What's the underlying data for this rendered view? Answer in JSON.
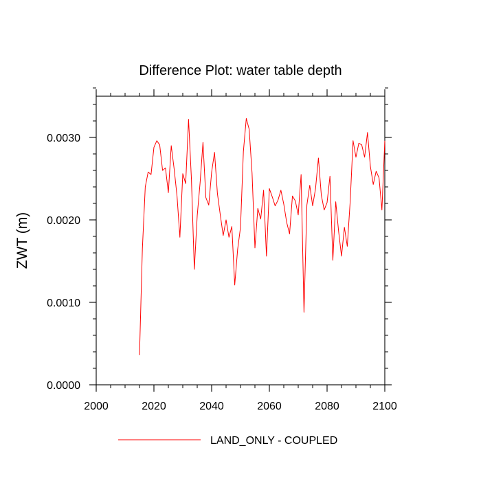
{
  "chart_data": {
    "type": "line",
    "title": "Difference Plot: water table depth",
    "xlabel": "",
    "ylabel": "ZWT  (m)",
    "xlim": [
      2000,
      2100
    ],
    "ylim": [
      0.0,
      0.0035
    ],
    "grid": false,
    "x_major_ticks": [
      2000,
      2020,
      2040,
      2060,
      2080,
      2100
    ],
    "x_tick_labels": [
      "2000",
      "2020",
      "2040",
      "2060",
      "2080",
      "2100"
    ],
    "x_minor_step": 5,
    "y_major_ticks": [
      0.0,
      0.001,
      0.002,
      0.003
    ],
    "y_tick_labels": [
      "0.0000",
      "0.0010",
      "0.0020",
      "0.0030"
    ],
    "y_minor_step": 0.0002,
    "legend_position": "bottom",
    "series": [
      {
        "name": "LAND_ONLY - COUPLED",
        "color": "#ff0000",
        "x": [
          2015,
          2016,
          2017,
          2018,
          2019,
          2020,
          2021,
          2022,
          2023,
          2024,
          2025,
          2026,
          2027,
          2028,
          2029,
          2030,
          2031,
          2032,
          2033,
          2034,
          2035,
          2036,
          2037,
          2038,
          2039,
          2040,
          2041,
          2042,
          2043,
          2044,
          2045,
          2046,
          2047,
          2048,
          2049,
          2050,
          2051,
          2052,
          2053,
          2054,
          2055,
          2056,
          2057,
          2058,
          2059,
          2060,
          2061,
          2062,
          2063,
          2064,
          2065,
          2066,
          2067,
          2068,
          2069,
          2070,
          2071,
          2072,
          2073,
          2074,
          2075,
          2076,
          2077,
          2078,
          2079,
          2080,
          2081,
          2082,
          2083,
          2084,
          2085,
          2086,
          2087,
          2088,
          2089,
          2090,
          2091,
          2092,
          2093,
          2094,
          2095,
          2096,
          2097,
          2098,
          2099,
          2100
        ],
        "values": [
          0.00036,
          0.00165,
          0.0024,
          0.00258,
          0.00255,
          0.00288,
          0.00296,
          0.00291,
          0.0026,
          0.00263,
          0.00233,
          0.0029,
          0.00262,
          0.00229,
          0.00179,
          0.00256,
          0.00244,
          0.00322,
          0.00249,
          0.0014,
          0.00205,
          0.00245,
          0.00294,
          0.00227,
          0.00218,
          0.00258,
          0.00282,
          0.00232,
          0.00206,
          0.00181,
          0.002,
          0.00179,
          0.00192,
          0.00121,
          0.00164,
          0.00191,
          0.00283,
          0.00323,
          0.0031,
          0.00257,
          0.00166,
          0.00214,
          0.00201,
          0.00236,
          0.00156,
          0.00238,
          0.00228,
          0.00217,
          0.00224,
          0.00236,
          0.00219,
          0.00197,
          0.00183,
          0.00229,
          0.00223,
          0.00206,
          0.00255,
          0.00088,
          0.00218,
          0.00242,
          0.00217,
          0.00238,
          0.00275,
          0.0023,
          0.00212,
          0.00221,
          0.00253,
          0.00151,
          0.00222,
          0.00186,
          0.00156,
          0.00191,
          0.00168,
          0.00222,
          0.00296,
          0.00276,
          0.00293,
          0.00291,
          0.00276,
          0.00306,
          0.00265,
          0.00243,
          0.00259,
          0.00251,
          0.00212,
          0.00296
        ]
      }
    ]
  }
}
